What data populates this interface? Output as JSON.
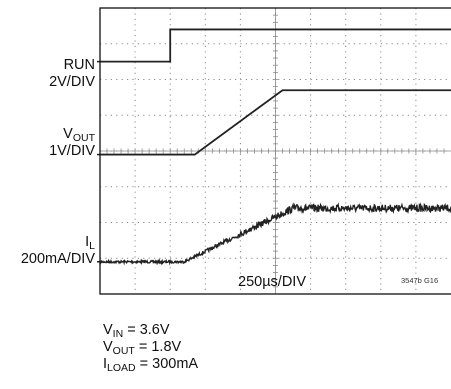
{
  "chart_data": {
    "type": "line",
    "title": "",
    "xlabel": "250µs/DIV",
    "x_divisions": 10,
    "y_divisions": 8,
    "figure_code": "3547b G16",
    "traces": [
      {
        "name": "RUN",
        "scale": "2V/DIV",
        "ref_div": 6.5,
        "unit": "V",
        "volts_per_div": 2,
        "x_div": [
          0,
          2.0,
          2.0,
          10
        ],
        "values": [
          0,
          0,
          1.8,
          1.8
        ]
      },
      {
        "name": "VOUT",
        "scale": "1V/DIV",
        "ref_div": 3.9,
        "unit": "V",
        "volts_per_div": 1,
        "x_div": [
          0,
          2.7,
          5.2,
          10
        ],
        "values": [
          0,
          0,
          1.8,
          1.8
        ]
      },
      {
        "name": "IL",
        "scale": "200mA/DIV",
        "ref_div": 0.9,
        "unit": "mA",
        "volts_per_div": 200,
        "noisy": true,
        "x_div": [
          0,
          2.4,
          5.5,
          10
        ],
        "values": [
          0,
          0,
          300,
          300
        ]
      }
    ]
  },
  "labels": {
    "run": {
      "name": "RUN",
      "scale": "2V/DIV"
    },
    "vout": {
      "name": "V",
      "sub": "OUT",
      "scale": "1V/DIV"
    },
    "il": {
      "name": "I",
      "sub": "L",
      "scale": "200mA/DIV"
    }
  },
  "conditions": [
    {
      "name": "V",
      "sub": "IN",
      "value": " = 3.6V"
    },
    {
      "name": "V",
      "sub": "OUT",
      "value": " = 1.8V"
    },
    {
      "name": "I",
      "sub": "LOAD",
      "value": " = 300mA"
    }
  ],
  "colors": {
    "trace": "#222222",
    "grid": "#8a8a8a",
    "frame": "#111111"
  }
}
